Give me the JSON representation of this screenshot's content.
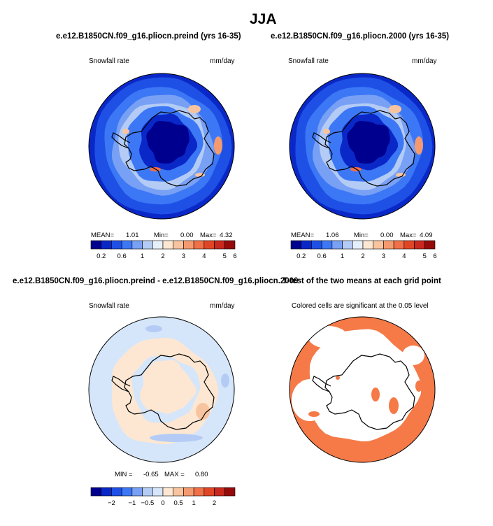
{
  "title": "JJA",
  "colors": {
    "scale": [
      "#00008f",
      "#0a28c8",
      "#1e50e6",
      "#3c78f5",
      "#78a0f5",
      "#b4ccf5",
      "#e6f0fa",
      "#fde7d2",
      "#f8c4a0",
      "#f59a70",
      "#f07048",
      "#e04626",
      "#c8281e",
      "#960a0a"
    ],
    "diff_scale": [
      "#00008f",
      "#0a28c8",
      "#1e50e6",
      "#3c78f5",
      "#78a0f5",
      "#b4ccf5",
      "#d6e6fa",
      "#fde7d2",
      "#f8c4a0",
      "#f59a70",
      "#f07048",
      "#e04626",
      "#c8281e",
      "#960a0a"
    ],
    "significant": "#f57a48",
    "coast": "#000000"
  },
  "panels": {
    "p1": {
      "title": "e.e12.B1850CN.f09_g16.pliocn.preind (yrs 16-35)",
      "variable": "Snowfall rate",
      "units": "mm/day",
      "mean_label": "MEAN=",
      "mean": "1.01",
      "min_label": "Min=",
      "min": "0.00",
      "max_label": "Max=",
      "max": "4.32"
    },
    "p2": {
      "title": "e.e12.B1850CN.f09_g16.pliocn.2000 (yrs 16-35)",
      "variable": "Snowfall rate",
      "units": "mm/day",
      "mean_label": "MEAN=",
      "mean": "1.06",
      "min_label": "Min=",
      "min": "0.00",
      "max_label": "Max=",
      "max": "4.09"
    },
    "p3": {
      "title": "e.e12.B1850CN.f09_g16.pliocn.preind - e.e12.B1850CN.f09_g16.pliocn.2000",
      "variable": "Snowfall rate",
      "units": "mm/day",
      "min_label": "MIN =",
      "min": "-0.65",
      "max_label": "MAX =",
      "max": "0.80"
    },
    "p4": {
      "title": "T-test of the two means at each grid point",
      "subtitle": "Colored cells are significant at the 0.05 level"
    }
  },
  "chart_data": [
    {
      "type": "heatmap",
      "title": "e.e12.B1850CN.f09_g16.pliocn.preind (yrs 16-35)",
      "variable": "Snowfall rate",
      "units": "mm/day",
      "colorbar_ticks": [
        "0.2",
        "0.6",
        "1",
        "2",
        "3",
        "4",
        "5",
        "6"
      ],
      "stats": {
        "mean": 1.01,
        "min": 0.0,
        "max": 4.32
      }
    },
    {
      "type": "heatmap",
      "title": "e.e12.B1850CN.f09_g16.pliocn.2000 (yrs 16-35)",
      "variable": "Snowfall rate",
      "units": "mm/day",
      "colorbar_ticks": [
        "0.2",
        "0.6",
        "1",
        "2",
        "3",
        "4",
        "5",
        "6"
      ],
      "stats": {
        "mean": 1.06,
        "min": 0.0,
        "max": 4.09
      }
    },
    {
      "type": "heatmap",
      "title": "e.e12.B1850CN.f09_g16.pliocn.preind - e.e12.B1850CN.f09_g16.pliocn.2000",
      "variable": "Snowfall rate",
      "units": "mm/day",
      "colorbar_ticks": [
        "−2",
        "−1",
        "−0.5",
        "0",
        "0.5",
        "1",
        "2"
      ],
      "stats": {
        "min": -0.65,
        "max": 0.8
      }
    },
    {
      "type": "heatmap",
      "title": "T-test of the two means at each grid point",
      "subtitle": "Colored cells are significant at the 0.05 level",
      "significance_level": 0.05
    }
  ]
}
